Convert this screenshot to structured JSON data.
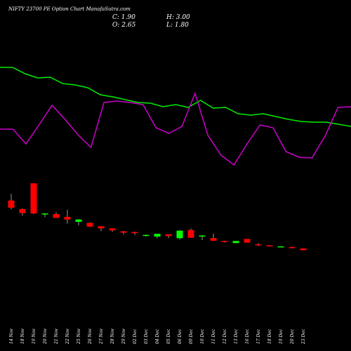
{
  "header": {
    "title": "NIFTY 23700  PE Option  Chart ManafaSutra.com",
    "close_label": "C: 1.90",
    "high_label": "H: 3.00",
    "open_label": "O: 2.65",
    "low_label": "L: 1.80"
  },
  "colors": {
    "background": "#000000",
    "up": "#00ff00",
    "down": "#ff0000",
    "wick": "#ffffff",
    "green_line": "#00ee00",
    "magenta_line": "#cc00cc"
  },
  "chart_data": {
    "type": "candlestick",
    "title": "NIFTY 23700  PE Option  Chart ManafaSutra.com",
    "categories": [
      "14 Nov",
      "18 Nov",
      "19 Nov",
      "20 Nov",
      "21 Nov",
      "22 Nov",
      "25 Nov",
      "26 Nov",
      "27 Nov",
      "28 Nov",
      "29 Nov",
      "02 Dec",
      "03 Dec",
      "04 Dec",
      "05 Dec",
      "06 Dec",
      "09 Dec",
      "10 Dec",
      "11 Dec",
      "12 Dec",
      "13 Dec",
      "16 Dec",
      "17 Dec",
      "18 Dec",
      "19 Dec",
      "20 Dec",
      "23 Dec"
    ],
    "candles": [
      {
        "open": 248,
        "close": 190,
        "high": 300,
        "low": 178
      },
      {
        "open": 180,
        "close": 148,
        "high": 185,
        "low": 128
      },
      {
        "open": 385,
        "close": 145,
        "high": 385,
        "low": 140
      },
      {
        "open": 140,
        "close": 145,
        "high": 148,
        "low": 115
      },
      {
        "open": 140,
        "close": 110,
        "high": 155,
        "low": 108
      },
      {
        "open": 118,
        "close": 96,
        "high": 174,
        "low": 64
      },
      {
        "open": 78,
        "close": 97,
        "high": 100,
        "low": 50
      },
      {
        "open": 70,
        "close": 40,
        "high": 74,
        "low": 37
      },
      {
        "open": 43,
        "close": 26,
        "high": 43,
        "low": 4
      },
      {
        "open": 26,
        "close": 10,
        "high": 27,
        "low": -2
      },
      {
        "open": 3,
        "close": -8,
        "high": 5,
        "low": -22
      },
      {
        "open": -3,
        "close": -12,
        "high": 0,
        "low": -28
      },
      {
        "open": -33,
        "close": -26,
        "high": -23,
        "low": -40
      },
      {
        "open": -39,
        "close": -17,
        "high": -17,
        "low": -53
      },
      {
        "open": -21,
        "close": -35,
        "high": -21,
        "low": -51
      },
      {
        "open": -52,
        "close": 8,
        "high": 12,
        "low": -63
      },
      {
        "open": 13,
        "close": -48,
        "high": 25,
        "low": -50
      },
      {
        "open": -37,
        "close": -31,
        "high": -28,
        "low": -67
      },
      {
        "open": -51,
        "close": -72,
        "high": -17,
        "low": -74
      },
      {
        "open": -74,
        "close": -79,
        "high": -72,
        "low": -87
      },
      {
        "open": -91,
        "close": -74,
        "high": -73,
        "low": -92
      },
      {
        "open": -58,
        "close": -87,
        "high": -58,
        "low": -89
      },
      {
        "open": -101,
        "close": -109,
        "high": -92,
        "low": -114
      },
      {
        "open": -109,
        "close": -114,
        "high": -106,
        "low": -118
      },
      {
        "open": -121,
        "close": -117,
        "high": -115,
        "low": -125
      },
      {
        "open": -122,
        "close": -131,
        "high": -119,
        "low": -133
      },
      {
        "open": -134,
        "close": -148,
        "high": -132,
        "low": -149
      }
    ],
    "green_line": [
      96,
      96,
      105,
      111,
      110,
      119,
      121,
      125,
      135,
      138,
      142,
      146,
      147,
      152,
      149,
      153,
      143,
      154,
      153,
      162,
      164,
      162,
      166,
      170,
      173,
      174,
      174,
      177,
      180
    ],
    "magenta_line": [
      184,
      184,
      205,
      178,
      150,
      170,
      192,
      210,
      146,
      144,
      146,
      149,
      182,
      190,
      180,
      133,
      193,
      221,
      235,
      205,
      178,
      182,
      216,
      224,
      225,
      194,
      153,
      152
    ]
  }
}
